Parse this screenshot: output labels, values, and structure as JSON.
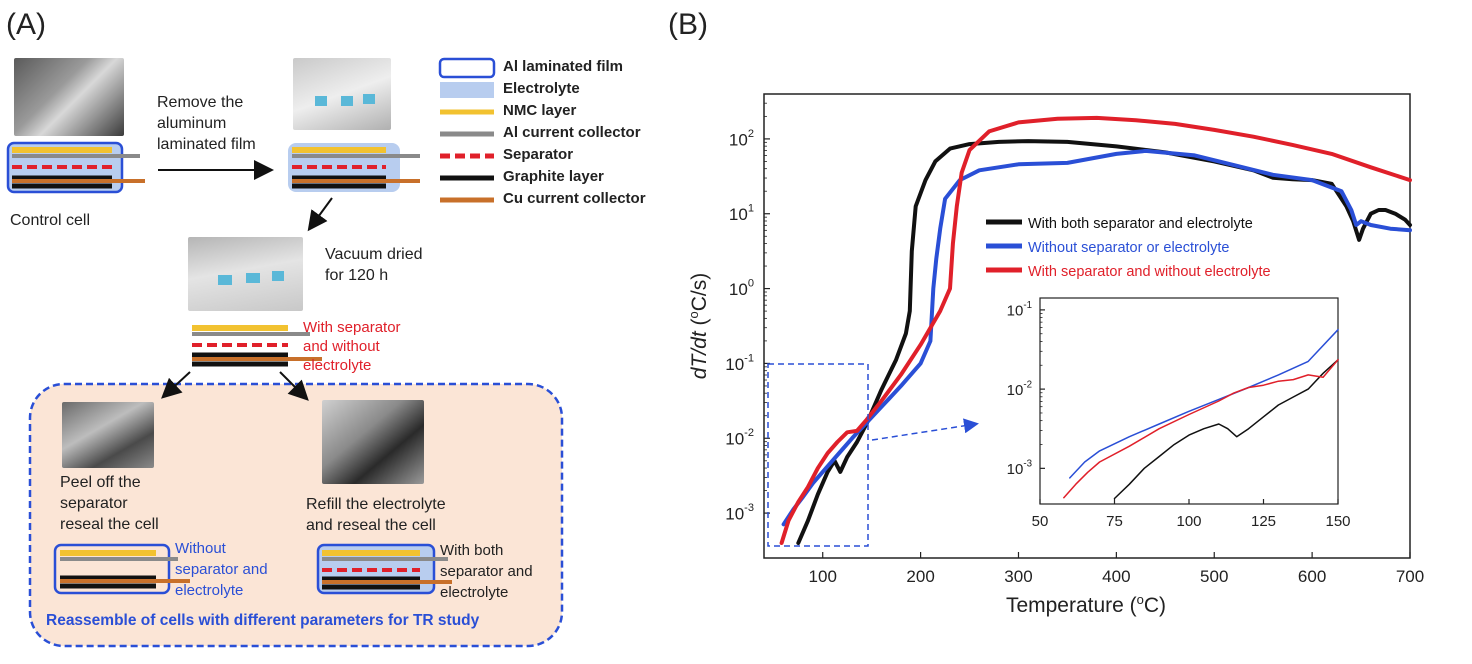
{
  "panelA": {
    "label": "(A)",
    "control_cell": "Control cell",
    "step_remove": [
      "Remove the",
      "aluminum",
      "laminated film"
    ],
    "step_vacuum": [
      "Vacuum dried",
      "for 120 h"
    ],
    "state_sep_no_elec": [
      "With separator",
      "and without",
      "electrolyte"
    ],
    "step_peel": [
      "Peel off the",
      "separator",
      "reseal the cell"
    ],
    "step_refill": [
      "Refill the electrolyte",
      "and reseal the cell"
    ],
    "state_without": [
      "Without",
      "separator and",
      "electrolyte"
    ],
    "state_both": [
      "With both",
      "separator and",
      "electrolyte"
    ],
    "reassemble": "Reassemble of cells with different parameters for TR study",
    "legend": [
      {
        "label": "Al laminated film",
        "symbol": "box-outline",
        "color": "#2a4fd6"
      },
      {
        "label": "Electrolyte",
        "symbol": "box-fill",
        "color": "#b8cdef"
      },
      {
        "label": "NMC layer",
        "symbol": "line",
        "color": "#f2c230"
      },
      {
        "label": "Al current collector",
        "symbol": "line",
        "color": "#8a8a8a"
      },
      {
        "label": "Separator",
        "symbol": "dash",
        "color": "#e0202a"
      },
      {
        "label": "Graphite layer",
        "symbol": "line",
        "color": "#111111"
      },
      {
        "label": "Cu current collector",
        "symbol": "line",
        "color": "#c8702a"
      }
    ],
    "colors": {
      "blue_text": "#2a4fd6",
      "red_text": "#e0202a",
      "box_fill": "#fbe5d6",
      "box_border": "#2a4fd6"
    }
  },
  "panelB": {
    "label": "(B)"
  },
  "chart_data": [
    {
      "type": "line",
      "id": "main",
      "xlabel": "Temperature (°C)",
      "ylabel": "dT/dt (°C/s)",
      "yscale": "log",
      "xlim": [
        40,
        700
      ],
      "ylim_exp": [
        -3.6,
        2.6
      ],
      "x_ticks": [
        100,
        200,
        300,
        400,
        500,
        600,
        700
      ],
      "y_ticks": [
        {
          "exp": -3,
          "label": "10"
        },
        {
          "exp": -2,
          "label": "10"
        },
        {
          "exp": -1,
          "label": "10"
        },
        {
          "exp": 0,
          "label": "10"
        },
        {
          "exp": 1,
          "label": "10"
        },
        {
          "exp": 2,
          "label": "10"
        }
      ],
      "y_tick_exps": [
        "-3",
        "-2",
        "-1",
        "0",
        "1",
        "2"
      ],
      "series": [
        {
          "name": "With both separator and electrolyte",
          "color": "#111111",
          "x": [
            75,
            85,
            95,
            105,
            112,
            118,
            125,
            135,
            145,
            160,
            175,
            185,
            189,
            191,
            195,
            205,
            215,
            230,
            250,
            280,
            310,
            350,
            400,
            450,
            500,
            540,
            560,
            580,
            600,
            620,
            635,
            642,
            648,
            652,
            660,
            668,
            675,
            685,
            695,
            700
          ],
          "logy": [
            -3.4,
            -3.1,
            -2.75,
            -2.45,
            -2.3,
            -2.45,
            -2.25,
            -2.05,
            -1.8,
            -1.35,
            -0.95,
            -0.6,
            -0.3,
            0.5,
            1.1,
            1.45,
            1.7,
            1.87,
            1.93,
            1.96,
            1.97,
            1.96,
            1.9,
            1.82,
            1.7,
            1.58,
            1.48,
            1.46,
            1.45,
            1.4,
            1.1,
            0.9,
            0.65,
            0.8,
            1.0,
            1.05,
            1.05,
            1.0,
            0.92,
            0.85
          ]
        },
        {
          "name": "Without separator or electrolyte",
          "color": "#2a4fd6",
          "x": [
            60,
            70,
            80,
            90,
            100,
            110,
            120,
            130,
            140,
            150,
            160,
            180,
            200,
            210,
            213,
            216,
            220,
            225,
            240,
            260,
            300,
            350,
            400,
            430,
            480,
            520,
            560,
            600,
            630,
            640,
            645,
            650,
            660,
            680,
            700
          ],
          "logy": [
            -3.15,
            -2.95,
            -2.78,
            -2.6,
            -2.45,
            -2.3,
            -2.15,
            -2.0,
            -1.86,
            -1.72,
            -1.58,
            -1.3,
            -1.0,
            -0.7,
            0.0,
            0.4,
            0.8,
            1.2,
            1.45,
            1.58,
            1.66,
            1.68,
            1.8,
            1.84,
            1.78,
            1.65,
            1.52,
            1.45,
            1.3,
            1.05,
            0.85,
            0.9,
            0.85,
            0.8,
            0.78
          ]
        },
        {
          "name": "With separator and without electrolyte",
          "color": "#e0202a",
          "x": [
            58,
            65,
            75,
            85,
            95,
            105,
            115,
            125,
            135,
            145,
            160,
            180,
            200,
            220,
            230,
            233,
            237,
            242,
            250,
            270,
            300,
            340,
            380,
            420,
            460,
            500,
            540,
            580,
            620,
            660,
            700
          ],
          "logy": [
            -3.4,
            -3.1,
            -2.85,
            -2.65,
            -2.4,
            -2.2,
            -2.05,
            -1.92,
            -1.9,
            -1.75,
            -1.5,
            -1.15,
            -0.75,
            -0.3,
            0.0,
            0.6,
            1.1,
            1.55,
            1.85,
            2.1,
            2.22,
            2.27,
            2.28,
            2.25,
            2.2,
            2.12,
            2.03,
            1.92,
            1.8,
            1.62,
            1.45
          ]
        }
      ]
    },
    {
      "type": "line",
      "id": "inset",
      "yscale": "log",
      "xlim": [
        50,
        150
      ],
      "ylim_exp": [
        -3.45,
        -0.85
      ],
      "x_ticks": [
        50,
        75,
        100,
        125,
        150
      ],
      "y_ticks": [
        {
          "exp": -3,
          "label": "10"
        },
        {
          "exp": -2,
          "label": "10"
        },
        {
          "exp": -1,
          "label": "10"
        }
      ],
      "y_tick_exps": [
        "-3",
        "-2",
        "-1"
      ],
      "series": [
        {
          "name": "With both separator and electrolyte",
          "color": "#111111",
          "x": [
            75,
            80,
            85,
            90,
            95,
            100,
            105,
            110,
            113,
            116,
            120,
            125,
            130,
            135,
            140,
            145,
            150
          ],
          "logy": [
            -3.38,
            -3.2,
            -3.0,
            -2.85,
            -2.7,
            -2.58,
            -2.5,
            -2.44,
            -2.5,
            -2.6,
            -2.5,
            -2.35,
            -2.2,
            -2.1,
            -2.0,
            -1.8,
            -1.63
          ]
        },
        {
          "name": "Without separator or electrolyte",
          "color": "#2a4fd6",
          "x": [
            60,
            65,
            70,
            80,
            90,
            100,
            110,
            120,
            130,
            140,
            150
          ],
          "logy": [
            -3.12,
            -2.92,
            -2.78,
            -2.6,
            -2.44,
            -2.28,
            -2.13,
            -1.98,
            -1.82,
            -1.65,
            -1.25
          ]
        },
        {
          "name": "With separator and without electrolyte",
          "color": "#e0202a",
          "x": [
            58,
            62,
            66,
            70,
            80,
            90,
            100,
            110,
            115,
            120,
            125,
            130,
            135,
            140,
            145,
            150
          ],
          "logy": [
            -3.37,
            -3.2,
            -3.05,
            -2.92,
            -2.72,
            -2.5,
            -2.32,
            -2.15,
            -2.05,
            -1.98,
            -1.95,
            -1.9,
            -1.88,
            -1.82,
            -1.85,
            -1.63
          ]
        }
      ]
    }
  ]
}
